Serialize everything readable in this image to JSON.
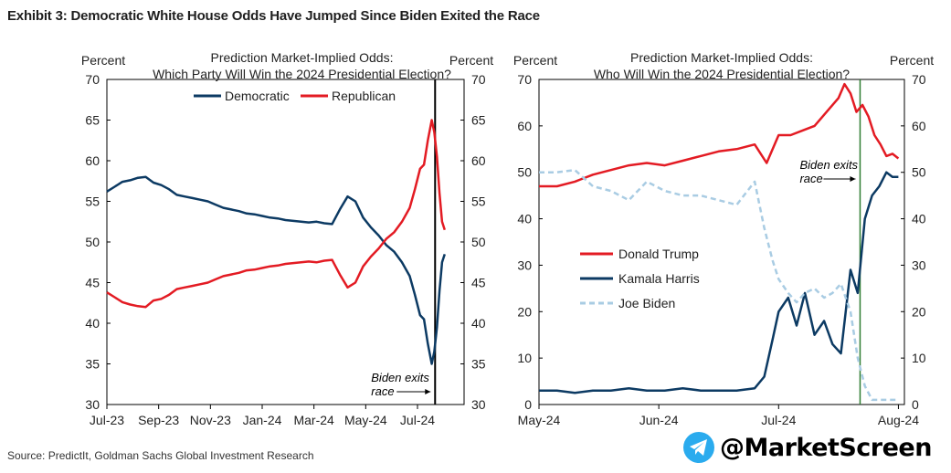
{
  "title": "Exhibit 3: Democratic White House Odds Have Jumped Since Biden Exited the Race",
  "source": "Source: PredictIt, Goldman Sachs Global Investment Research",
  "watermark": {
    "handle": "@MarketScreen",
    "icon": "telegram-icon",
    "icon_color": "#2AABEE"
  },
  "chart_data": [
    {
      "type": "line",
      "title_line1": "Prediction Market-Implied Odds:",
      "title_line2": "Which Party Will Win the 2024 Presidential Election?",
      "ylabel_left": "Percent",
      "ylabel_right": "Percent",
      "ylim": [
        30,
        70
      ],
      "yticks": [
        30,
        35,
        40,
        45,
        50,
        55,
        60,
        65,
        70
      ],
      "xlim": [
        0,
        13.8
      ],
      "xticks": [
        0,
        2,
        4,
        6,
        8,
        10,
        12
      ],
      "xtick_labels": [
        "Jul-23",
        "Sep-23",
        "Nov-23",
        "Jan-24",
        "Mar-24",
        "May-24",
        "Jul-24"
      ],
      "annotation": {
        "line1": "Biden exits",
        "line2": "race",
        "x": 12.68
      },
      "vline_x": 12.68,
      "legend": [
        "Democratic",
        "Republican"
      ],
      "series": [
        {
          "name": "Democratic",
          "color": "#0c3a63",
          "dashed": false,
          "x": [
            0,
            0.3,
            0.6,
            0.9,
            1.2,
            1.5,
            1.8,
            2.1,
            2.4,
            2.7,
            3,
            3.3,
            3.6,
            3.9,
            4.2,
            4.5,
            4.8,
            5.1,
            5.4,
            5.7,
            6,
            6.3,
            6.6,
            6.9,
            7.2,
            7.5,
            7.8,
            8.1,
            8.4,
            8.7,
            9,
            9.3,
            9.6,
            9.9,
            10.2,
            10.5,
            10.8,
            11.1,
            11.4,
            11.7,
            11.9,
            12.1,
            12.25,
            12.4,
            12.55,
            12.65,
            12.75,
            12.85,
            12.95,
            13.05
          ],
          "values": [
            56.2,
            56.8,
            57.4,
            57.6,
            57.9,
            58.0,
            57.3,
            57.0,
            56.5,
            55.8,
            55.6,
            55.4,
            55.2,
            55.0,
            54.6,
            54.2,
            54.0,
            53.8,
            53.5,
            53.4,
            53.2,
            53.0,
            52.9,
            52.7,
            52.6,
            52.5,
            52.4,
            52.5,
            52.3,
            52.2,
            54.0,
            55.6,
            55.0,
            53.0,
            51.8,
            50.8,
            49.6,
            48.8,
            47.5,
            45.8,
            43.5,
            41.0,
            40.5,
            37.5,
            35.0,
            36.5,
            39.5,
            44.0,
            47.5,
            48.5
          ]
        },
        {
          "name": "Republican",
          "color": "#e31b23",
          "dashed": false,
          "x": [
            0,
            0.3,
            0.6,
            0.9,
            1.2,
            1.5,
            1.8,
            2.1,
            2.4,
            2.7,
            3,
            3.3,
            3.6,
            3.9,
            4.2,
            4.5,
            4.8,
            5.1,
            5.4,
            5.7,
            6,
            6.3,
            6.6,
            6.9,
            7.2,
            7.5,
            7.8,
            8.1,
            8.4,
            8.7,
            9,
            9.3,
            9.6,
            9.9,
            10.2,
            10.5,
            10.8,
            11.1,
            11.4,
            11.7,
            11.9,
            12.1,
            12.25,
            12.4,
            12.55,
            12.65,
            12.75,
            12.85,
            12.95,
            13.05
          ],
          "values": [
            43.8,
            43.2,
            42.6,
            42.3,
            42.1,
            42.0,
            42.8,
            43.0,
            43.5,
            44.2,
            44.4,
            44.6,
            44.8,
            45.0,
            45.4,
            45.8,
            46.0,
            46.2,
            46.5,
            46.6,
            46.8,
            47.0,
            47.1,
            47.3,
            47.4,
            47.5,
            47.6,
            47.5,
            47.7,
            47.8,
            46.0,
            44.4,
            45.0,
            47.0,
            48.2,
            49.2,
            50.4,
            51.2,
            52.5,
            54.2,
            56.5,
            59.0,
            59.5,
            62.5,
            65.0,
            63.5,
            60.5,
            56.0,
            52.5,
            51.5
          ]
        }
      ]
    },
    {
      "type": "line",
      "title_line1": "Prediction Market-Implied Odds:",
      "title_line2": "Who Will Win the 2024 Presidential Election?",
      "ylabel_left": "Percent",
      "ylabel_right": "Percent",
      "ylim": [
        0,
        70
      ],
      "yticks": [
        0,
        10,
        20,
        30,
        40,
        50,
        60,
        70
      ],
      "xlim": [
        0,
        3.05
      ],
      "xticks": [
        0,
        1,
        2,
        3
      ],
      "xtick_labels": [
        "May-24",
        "Jun-24",
        "Jul-24",
        "Aug-24"
      ],
      "annotation": {
        "line1": "Biden exits",
        "line2": "race",
        "x": 2.68
      },
      "vline_x": 2.68,
      "legend": [
        "Donald Trump",
        "Kamala Harris",
        "Joe Biden"
      ],
      "series": [
        {
          "name": "Donald Trump",
          "color": "#e31b23",
          "dashed": false,
          "x": [
            0,
            0.15,
            0.3,
            0.45,
            0.6,
            0.75,
            0.9,
            1.05,
            1.2,
            1.35,
            1.5,
            1.65,
            1.8,
            1.9,
            2.0,
            2.1,
            2.2,
            2.3,
            2.4,
            2.5,
            2.55,
            2.6,
            2.65,
            2.7,
            2.75,
            2.8,
            2.85,
            2.9,
            2.95,
            3.0
          ],
          "values": [
            47,
            47,
            48,
            49.5,
            50.5,
            51.5,
            52,
            51.5,
            52.5,
            53.5,
            54.5,
            55,
            56,
            52,
            58,
            58,
            59,
            60,
            63,
            66,
            69,
            67,
            63,
            64.5,
            62,
            58,
            56,
            53.5,
            54,
            53
          ]
        },
        {
          "name": "Kamala Harris",
          "color": "#0c3a63",
          "dashed": false,
          "x": [
            0,
            0.15,
            0.3,
            0.45,
            0.6,
            0.75,
            0.9,
            1.05,
            1.2,
            1.35,
            1.5,
            1.65,
            1.8,
            1.88,
            1.95,
            2.0,
            2.08,
            2.15,
            2.22,
            2.3,
            2.38,
            2.45,
            2.52,
            2.6,
            2.66,
            2.72,
            2.78,
            2.84,
            2.9,
            2.95,
            3.0
          ],
          "values": [
            3,
            3,
            2.5,
            3,
            3,
            3.5,
            3,
            3,
            3.5,
            3,
            3,
            3,
            3.5,
            6,
            14,
            20,
            23,
            17,
            24,
            15,
            18,
            13,
            11,
            29,
            24,
            40,
            45,
            47,
            50,
            49,
            49
          ]
        },
        {
          "name": "Joe Biden",
          "color": "#a9cce3",
          "dashed": true,
          "x": [
            0,
            0.15,
            0.3,
            0.45,
            0.6,
            0.75,
            0.9,
            1.05,
            1.2,
            1.35,
            1.5,
            1.65,
            1.8,
            1.88,
            1.95,
            2.0,
            2.08,
            2.15,
            2.22,
            2.3,
            2.38,
            2.45,
            2.52,
            2.6,
            2.66,
            2.72,
            2.78,
            2.84,
            2.9,
            2.95,
            3.0
          ],
          "values": [
            50,
            50,
            50.5,
            47,
            46,
            44,
            48,
            46,
            45,
            45,
            44,
            43,
            48,
            38,
            31,
            27,
            24,
            22,
            24,
            25,
            23,
            24,
            26,
            20,
            10,
            4,
            1,
            1,
            1,
            1,
            1
          ]
        }
      ]
    }
  ]
}
